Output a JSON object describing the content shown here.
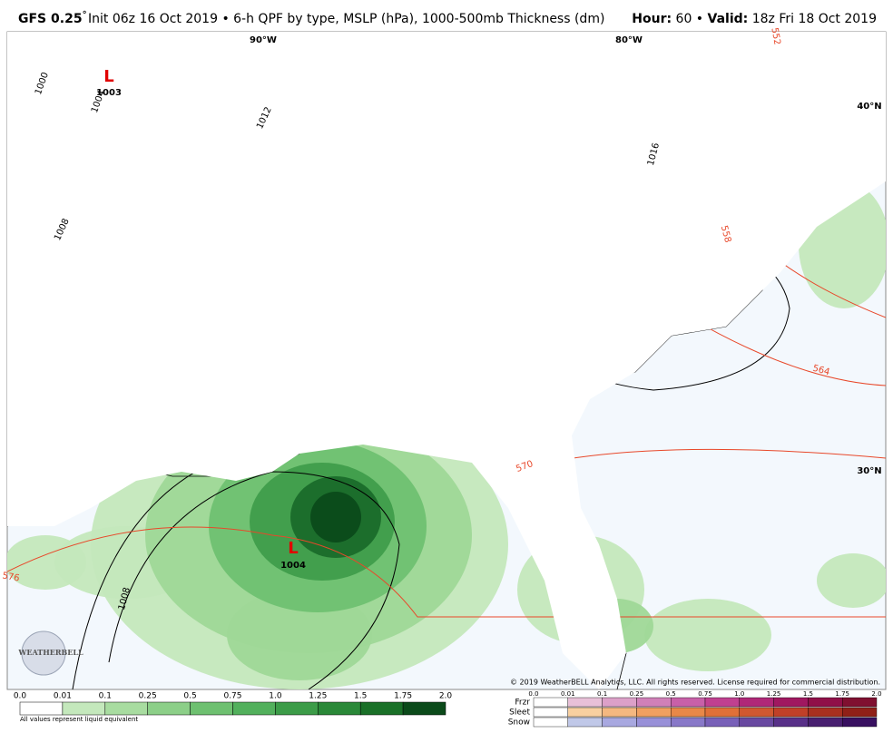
{
  "header": {
    "model": "GFS 0.25",
    "degree": "°",
    "description": "Init 06z 16 Oct 2019 • 6-h QPF by type, MSLP (hPa), 1000-500mb Thickness (dm)",
    "hour_label": "Hour:",
    "hour": "60 •",
    "valid_label": "Valid:",
    "valid": "18z Fri 18 Oct 2019"
  },
  "map": {
    "meridians": [
      "90°W",
      "80°W"
    ],
    "parallels": [
      "40°N",
      "30°N"
    ],
    "lows": [
      {
        "symbol": "L",
        "pressure": "1003"
      },
      {
        "symbol": "L",
        "pressure": "1004"
      }
    ],
    "isobar_labels": [
      "1000",
      "1004",
      "1008",
      "1012",
      "1016",
      "1008"
    ],
    "thickness_labels": [
      "552",
      "558",
      "564",
      "570",
      "576"
    ],
    "copyright": "© 2019 WeatherBELL Analytics, LLC. All rights reserved. License required for commercial distribution.",
    "logo": "WEATHERBELL"
  },
  "legend": {
    "rain_scale": [
      "0.0",
      "0.01",
      "0.1",
      "0.25",
      "0.5",
      "0.75",
      "1.0",
      "1.25",
      "1.5",
      "1.75",
      "2.0"
    ],
    "note": "All values represent liquid equivalent",
    "ptype_scale": [
      "0.0",
      "0.01",
      "0.1",
      "0.25",
      "0.5",
      "0.75",
      "1.0",
      "1.25",
      "1.5",
      "1.75",
      "2.0"
    ],
    "ptypes": [
      "Frzr",
      "Sleet",
      "Snow"
    ]
  }
}
